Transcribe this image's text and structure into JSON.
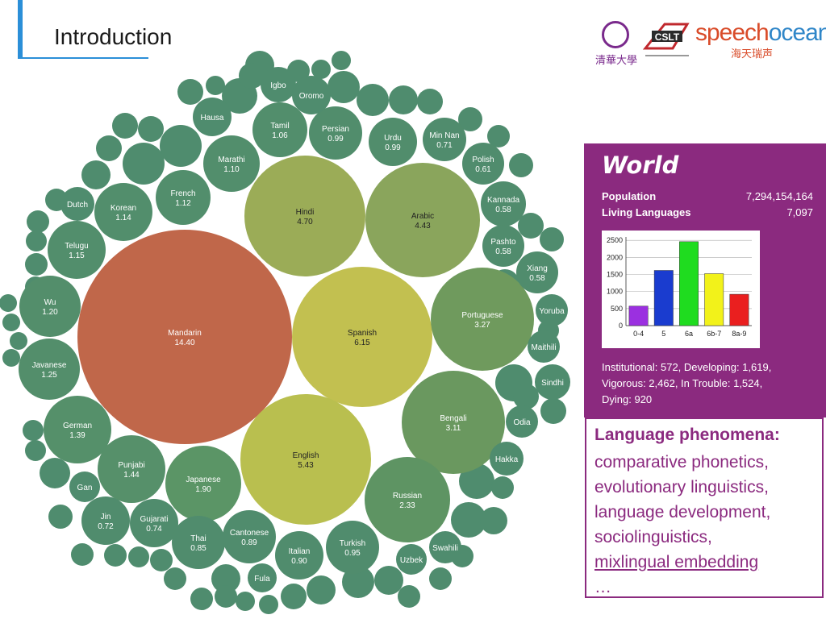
{
  "slide": {
    "title": "Introduction"
  },
  "logos": {
    "tsinghua_text": "清華大學",
    "cslt_text": "CSLT",
    "speech_text_a": "speech",
    "speech_text_b": "ocean",
    "speech_sub": "海天瑞声"
  },
  "bubbles": [
    {
      "label": "Mandarin",
      "value": "14.40",
      "color": "#c0674a"
    },
    {
      "label": "Spanish",
      "value": "6.15",
      "color": "#c2c050"
    },
    {
      "label": "English",
      "value": "5.43",
      "color": "#b9bf4f"
    },
    {
      "label": "Hindi",
      "value": "4.70",
      "color": "#9bac57"
    },
    {
      "label": "Arabic",
      "value": "4.43",
      "color": "#8aa55c"
    },
    {
      "label": "Portuguese",
      "value": "3.27",
      "color": "#6f9a5d"
    },
    {
      "label": "Bengali",
      "value": "3.11",
      "color": "#6a985f"
    },
    {
      "label": "Russian",
      "value": "2.33",
      "color": "#5e9463"
    },
    {
      "label": "Japanese",
      "value": "1.90",
      "color": "#5b9566"
    },
    {
      "label": "Punjabi",
      "value": "1.44",
      "color": "#56906a"
    },
    {
      "label": "German",
      "value": "1.39",
      "color": "#55906a"
    },
    {
      "label": "Javanese",
      "value": "1.25",
      "color": "#538e6b"
    },
    {
      "label": "Wu",
      "value": "1.20",
      "color": "#538e6b"
    },
    {
      "label": "Telugu",
      "value": "1.15",
      "color": "#528e6c"
    },
    {
      "label": "Korean",
      "value": "1.14",
      "color": "#528e6c"
    },
    {
      "label": "French",
      "value": "1.12",
      "color": "#528e6c"
    },
    {
      "label": "Marathi",
      "value": "1.10",
      "color": "#528e6c"
    },
    {
      "label": "Tamil",
      "value": "1.06",
      "color": "#528e6c"
    },
    {
      "label": "Persian",
      "value": "0.99",
      "color": "#518d6c"
    },
    {
      "label": "Urdu",
      "value": "0.99",
      "color": "#518d6c"
    },
    {
      "label": "Min Nan",
      "value": "0.71",
      "color": "#508c6d"
    },
    {
      "label": "Polish",
      "value": "0.61",
      "color": "#508c6d"
    },
    {
      "label": "Kannada",
      "value": "0.58",
      "color": "#508c6d"
    },
    {
      "label": "Pashto",
      "value": "0.58",
      "color": "#508c6d"
    },
    {
      "label": "Xiang",
      "value": "0.58",
      "color": "#508c6d"
    },
    {
      "label": "Jin",
      "value": "0.72",
      "color": "#508c6d"
    },
    {
      "label": "Gujarati",
      "value": "0.74",
      "color": "#508c6d"
    },
    {
      "label": "Thai",
      "value": "0.85",
      "color": "#508c6d"
    },
    {
      "label": "Cantonese",
      "value": "0.89",
      "color": "#508c6d"
    },
    {
      "label": "Italian",
      "value": "0.90",
      "color": "#508c6d"
    },
    {
      "label": "Turkish",
      "value": "0.95",
      "color": "#508c6d"
    },
    {
      "label": "Igbo",
      "value": "",
      "color": "#4f8c6e"
    },
    {
      "label": "Oromo",
      "value": "",
      "color": "#4f8c6e"
    },
    {
      "label": "Hausa",
      "value": "",
      "color": "#4f8c6e"
    },
    {
      "label": "Dutch",
      "value": "",
      "color": "#4f8c6e"
    },
    {
      "label": "Yoruba",
      "value": "",
      "color": "#4f8c6e"
    },
    {
      "label": "Maithili",
      "value": "",
      "color": "#4f8c6e"
    },
    {
      "label": "Sindhi",
      "value": "",
      "color": "#4f8c6e"
    },
    {
      "label": "Odia",
      "value": "",
      "color": "#4f8c6e"
    },
    {
      "label": "Hakka",
      "value": "",
      "color": "#4f8c6e"
    },
    {
      "label": "Swahili",
      "value": "",
      "color": "#4f8c6e"
    },
    {
      "label": "Uzbek",
      "value": "",
      "color": "#4f8c6e"
    },
    {
      "label": "Fula",
      "value": "",
      "color": "#4f8c6e"
    },
    {
      "label": "Gan",
      "value": "",
      "color": "#4f8c6e"
    }
  ],
  "small_bubble_color": "#4f8c6e",
  "world": {
    "title": "World",
    "population_label": "Population",
    "population_value": "7,294,154,164",
    "languages_label": "Living Languages",
    "languages_value": "7,097",
    "footer_line1": "Institutional: 572, Developing: 1,619,",
    "footer_line2": "Vigorous: 2,462, In Trouble: 1,524,",
    "footer_line3": "Dying: 920"
  },
  "chart_data": {
    "type": "bar",
    "categories": [
      "0-4",
      "5",
      "6a",
      "6b-7",
      "8a-9"
    ],
    "values": [
      572,
      1619,
      2462,
      1524,
      920
    ],
    "colors": [
      "#9b30e0",
      "#1a3ccf",
      "#1fdc1f",
      "#f2f21a",
      "#ea1f1f"
    ],
    "yticks": [
      0,
      500,
      1000,
      1500,
      2000,
      2500
    ],
    "ylim": [
      0,
      2600
    ],
    "grid": true
  },
  "phenomena": {
    "title": "Language phenomena:",
    "items": [
      "comparative phonetics,",
      "evolutionary linguistics,",
      "language development,",
      "sociolinguistics,"
    ],
    "underlined": "mixlingual embedding",
    "ellipsis": "…"
  },
  "colors": {
    "accent_blue": "#2b8fd8",
    "panel_purple": "#8b2a7f"
  }
}
